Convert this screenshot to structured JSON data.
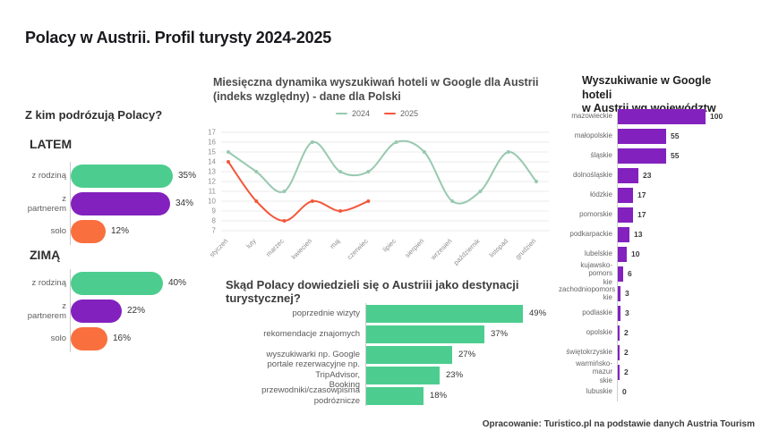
{
  "title": "Polacy w Austrii. Profil turysty 2024-2025",
  "source_note": "Opracowanie: Turistico.pl na podstawie danych Austria Tourism",
  "colors": {
    "green": "#4CCD8F",
    "purple": "#8321BE",
    "orange": "#F9703E",
    "line_2024": "#98C9B0",
    "line_2025": "#F2583B",
    "grid": "#ebebeb",
    "axis_text": "#8f8f8f"
  },
  "companions_heading": "Z kim podrózują Polacy?",
  "chart_data": [
    {
      "id": "companions-summer",
      "type": "bar",
      "orientation": "horizontal",
      "title": "LATEM",
      "categories": [
        "z rodziną",
        "z partnerem",
        "solo"
      ],
      "values": [
        35,
        34,
        12
      ],
      "unit": "%",
      "bar_colors": [
        "#4CCD8F",
        "#8321BE",
        "#F9703E"
      ],
      "xlim": [
        0,
        35
      ]
    },
    {
      "id": "companions-winter",
      "type": "bar",
      "orientation": "horizontal",
      "title": "ZIMĄ",
      "categories": [
        "z rodziną",
        "z partnerem",
        "solo"
      ],
      "values": [
        40,
        22,
        16
      ],
      "unit": "%",
      "bar_colors": [
        "#4CCD8F",
        "#8321BE",
        "#F9703E"
      ],
      "xlim": [
        0,
        40
      ]
    },
    {
      "id": "monthly-google-searches",
      "type": "line",
      "title": "Miesięczna dynamika wyszukiwań hoteli w Google dla Austrii\n(indeks względny) - dane dla Polski",
      "x": [
        "styczeń",
        "luty",
        "marzec",
        "kwiecień",
        "maj",
        "czerwiec",
        "lipiec",
        "sierpień",
        "wrzesień",
        "październik",
        "listopad",
        "grudzień"
      ],
      "series": [
        {
          "name": "2024",
          "color": "#98C9B0",
          "values": [
            15,
            13,
            11,
            16,
            13,
            13,
            16,
            15,
            10,
            11,
            15,
            12
          ]
        },
        {
          "name": "2025",
          "color": "#F2583B",
          "values": [
            14,
            10,
            8,
            10,
            9,
            10
          ]
        }
      ],
      "ylim": [
        7,
        17
      ],
      "yticks": [
        17,
        16,
        15,
        14,
        13,
        12,
        11,
        10,
        9,
        8,
        7
      ],
      "grid": true,
      "legend_position": "top"
    },
    {
      "id": "info-sources",
      "type": "bar",
      "orientation": "horizontal",
      "title": "Skąd Polacy dowiedzieli się o Austriii jako destynacji turystycznej?",
      "categories": [
        "poprzednie wizyty",
        "rekomendacje znajomych",
        "wyszukiwarki np. Google",
        "portale rezerwacyjne np. TripAdvisor,\nBooking",
        "przewodniki/czasowpisma\npodróznicze"
      ],
      "values": [
        49,
        37,
        27,
        23,
        18
      ],
      "unit": "%",
      "bar_color": "#4CCD8F",
      "xlim": [
        0,
        49
      ]
    },
    {
      "id": "voivodeships",
      "type": "bar",
      "orientation": "horizontal",
      "title": "Wyszukiwanie w Google hoteli\nw Austrii wg województw",
      "categories": [
        "mazowieckie",
        "małopolskie",
        "śląskie",
        "dolnośląskie",
        "łódzkie",
        "pomorskie",
        "podkarpackie",
        "lubelskie",
        "kujawsko-pomors\nkie",
        "zachodniopomors\nkie",
        "podlaskie",
        "opolskie",
        "świętokrzyskie",
        "warmińsko-mazur\nskie",
        "lubuskie"
      ],
      "values": [
        100,
        55,
        55,
        23,
        17,
        17,
        13,
        10,
        6,
        3,
        3,
        2,
        2,
        2,
        0
      ],
      "unit": "",
      "bar_color": "#8321BE",
      "xlim": [
        0,
        100
      ]
    }
  ]
}
